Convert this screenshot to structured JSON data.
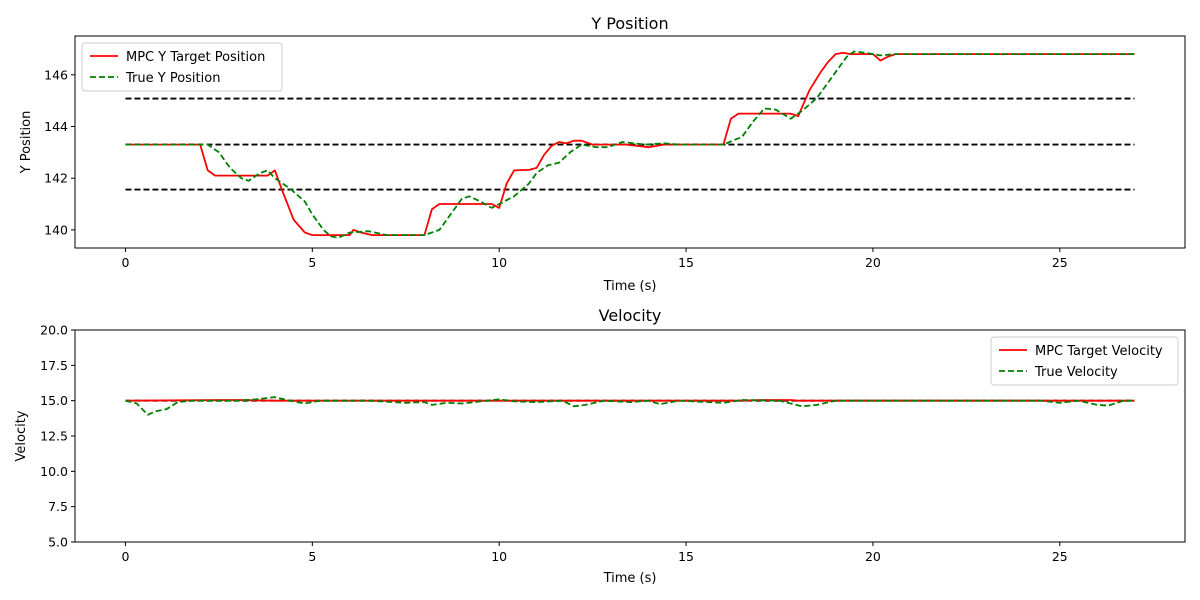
{
  "colors": {
    "target": "#ff0000",
    "true": "#008000",
    "reference": "#000000",
    "axes": "#000000",
    "background": "#ffffff",
    "legend_border": "#cccccc"
  },
  "chart_data": [
    {
      "type": "line",
      "title": "Y Position",
      "xlabel": "Time (s)",
      "ylabel": "Y Position",
      "xlim": [
        -1.35,
        28.35
      ],
      "ylim": [
        139.3,
        147.5
      ],
      "xticks": [
        0,
        5,
        10,
        15,
        20,
        25
      ],
      "yticks": [
        140,
        142,
        144,
        146
      ],
      "grid": false,
      "legend_position": "top-left",
      "reference_lines": [
        {
          "y": 145.08,
          "x": [
            0,
            27
          ],
          "style": "dashed"
        },
        {
          "y": 143.3,
          "x": [
            0,
            27
          ],
          "style": "dashed"
        },
        {
          "y": 141.56,
          "x": [
            0,
            27
          ],
          "style": "dashed"
        }
      ],
      "series": [
        {
          "name": "MPC Y Target Position",
          "style": "solid",
          "color_key": "target",
          "points": [
            [
              0,
              143.3
            ],
            [
              2,
              143.3
            ],
            [
              2.2,
              142.3
            ],
            [
              2.4,
              142.1
            ],
            [
              3.8,
              142.1
            ],
            [
              4.0,
              142.3
            ],
            [
              4.2,
              141.5
            ],
            [
              4.5,
              140.4
            ],
            [
              4.8,
              139.9
            ],
            [
              5.0,
              139.8
            ],
            [
              6.0,
              139.8
            ],
            [
              6.1,
              140.0
            ],
            [
              6.3,
              139.9
            ],
            [
              6.6,
              139.8
            ],
            [
              8.0,
              139.8
            ],
            [
              8.2,
              140.8
            ],
            [
              8.4,
              141.0
            ],
            [
              9.8,
              141.0
            ],
            [
              10.0,
              140.85
            ],
            [
              10.2,
              141.8
            ],
            [
              10.4,
              142.3
            ],
            [
              10.8,
              142.32
            ],
            [
              11.0,
              142.4
            ],
            [
              11.2,
              142.9
            ],
            [
              11.4,
              143.25
            ],
            [
              11.6,
              143.4
            ],
            [
              11.8,
              143.35
            ],
            [
              12.0,
              143.45
            ],
            [
              12.2,
              143.45
            ],
            [
              12.5,
              143.3
            ],
            [
              13.0,
              143.3
            ],
            [
              13.4,
              143.3
            ],
            [
              14.0,
              143.2
            ],
            [
              14.4,
              143.3
            ],
            [
              16.0,
              143.3
            ],
            [
              16.2,
              144.3
            ],
            [
              16.4,
              144.5
            ],
            [
              17.0,
              144.5
            ],
            [
              17.8,
              144.5
            ],
            [
              18.0,
              144.4
            ],
            [
              18.3,
              145.4
            ],
            [
              18.6,
              146.1
            ],
            [
              18.8,
              146.5
            ],
            [
              19.0,
              146.8
            ],
            [
              19.2,
              146.85
            ],
            [
              19.4,
              146.8
            ],
            [
              20.0,
              146.8
            ],
            [
              20.2,
              146.55
            ],
            [
              20.4,
              146.7
            ],
            [
              20.6,
              146.8
            ],
            [
              27,
              146.8
            ]
          ]
        },
        {
          "name": "True Y Position",
          "style": "dashed",
          "color_key": "true",
          "points": [
            [
              0,
              143.3
            ],
            [
              2.2,
              143.3
            ],
            [
              2.5,
              143.0
            ],
            [
              2.8,
              142.4
            ],
            [
              3.1,
              142.0
            ],
            [
              3.3,
              141.9
            ],
            [
              3.6,
              142.2
            ],
            [
              3.8,
              142.3
            ],
            [
              4.0,
              142.0
            ],
            [
              4.4,
              141.6
            ],
            [
              4.8,
              141.1
            ],
            [
              5.0,
              140.6
            ],
            [
              5.3,
              140.0
            ],
            [
              5.5,
              139.75
            ],
            [
              5.7,
              139.7
            ],
            [
              6.0,
              139.9
            ],
            [
              6.5,
              139.95
            ],
            [
              7.0,
              139.8
            ],
            [
              8.0,
              139.8
            ],
            [
              8.4,
              140.0
            ],
            [
              8.7,
              140.6
            ],
            [
              9.0,
              141.2
            ],
            [
              9.2,
              141.3
            ],
            [
              9.5,
              141.1
            ],
            [
              9.8,
              140.85
            ],
            [
              10.0,
              141.0
            ],
            [
              10.4,
              141.3
            ],
            [
              10.8,
              141.8
            ],
            [
              11.0,
              142.2
            ],
            [
              11.3,
              142.5
            ],
            [
              11.6,
              142.6
            ],
            [
              11.9,
              143.0
            ],
            [
              12.2,
              143.3
            ],
            [
              12.6,
              143.2
            ],
            [
              12.9,
              143.2
            ],
            [
              13.3,
              143.4
            ],
            [
              13.6,
              143.35
            ],
            [
              13.9,
              143.3
            ],
            [
              14.4,
              143.35
            ],
            [
              14.8,
              143.3
            ],
            [
              15.3,
              143.3
            ],
            [
              16.0,
              143.3
            ],
            [
              16.5,
              143.6
            ],
            [
              16.8,
              144.2
            ],
            [
              17.1,
              144.7
            ],
            [
              17.4,
              144.65
            ],
            [
              17.8,
              144.3
            ],
            [
              18.1,
              144.6
            ],
            [
              18.5,
              145.1
            ],
            [
              18.8,
              145.7
            ],
            [
              19.1,
              146.3
            ],
            [
              19.3,
              146.7
            ],
            [
              19.5,
              146.9
            ],
            [
              19.8,
              146.85
            ],
            [
              20.2,
              146.75
            ],
            [
              20.6,
              146.8
            ],
            [
              27,
              146.8
            ]
          ]
        }
      ]
    },
    {
      "type": "line",
      "title": "Velocity",
      "xlabel": "Time (s)",
      "ylabel": "Velocity",
      "xlim": [
        -1.35,
        28.35
      ],
      "ylim": [
        5.0,
        20.0
      ],
      "xticks": [
        0,
        5,
        10,
        15,
        20,
        25
      ],
      "yticks": [
        5.0,
        7.5,
        10.0,
        12.5,
        15.0,
        17.5,
        20.0
      ],
      "ytick_labels": [
        "5.0",
        "7.5",
        "10.0",
        "12.5",
        "15.0",
        "17.5",
        "20.0"
      ],
      "grid": false,
      "legend_position": "top-right",
      "reference_lines": [
        {
          "y": 15.0,
          "x": [
            0,
            27
          ],
          "style": "dashed"
        }
      ],
      "series": [
        {
          "name": "MPC Target Velocity",
          "style": "solid",
          "color_key": "target",
          "points": [
            [
              0,
              15.0
            ],
            [
              2.5,
              15.05
            ],
            [
              3.0,
              15.05
            ],
            [
              4.0,
              15.0
            ],
            [
              16.5,
              15.0
            ],
            [
              17.0,
              15.05
            ],
            [
              17.8,
              15.05
            ],
            [
              18.0,
              15.0
            ],
            [
              27,
              15.0
            ]
          ]
        },
        {
          "name": "True Velocity",
          "style": "dashed",
          "color_key": "true",
          "points": [
            [
              0,
              15.0
            ],
            [
              0.3,
              14.8
            ],
            [
              0.6,
              14.0
            ],
            [
              0.8,
              14.25
            ],
            [
              1.1,
              14.4
            ],
            [
              1.4,
              14.9
            ],
            [
              1.8,
              15.0
            ],
            [
              3.0,
              15.0
            ],
            [
              3.5,
              15.1
            ],
            [
              4.0,
              15.25
            ],
            [
              4.4,
              15.0
            ],
            [
              4.8,
              14.8
            ],
            [
              5.2,
              15.0
            ],
            [
              6.5,
              15.0
            ],
            [
              7.5,
              14.85
            ],
            [
              8.0,
              14.9
            ],
            [
              8.2,
              14.7
            ],
            [
              8.6,
              14.85
            ],
            [
              9.0,
              14.8
            ],
            [
              9.5,
              14.95
            ],
            [
              10.0,
              15.1
            ],
            [
              10.4,
              14.95
            ],
            [
              11.0,
              14.9
            ],
            [
              11.7,
              15.0
            ],
            [
              12.0,
              14.6
            ],
            [
              12.3,
              14.7
            ],
            [
              12.8,
              15.0
            ],
            [
              13.5,
              14.9
            ],
            [
              14.0,
              15.0
            ],
            [
              14.3,
              14.75
            ],
            [
              14.8,
              15.0
            ],
            [
              16.0,
              14.85
            ],
            [
              16.5,
              15.05
            ],
            [
              17.5,
              15.0
            ],
            [
              18.1,
              14.6
            ],
            [
              18.5,
              14.7
            ],
            [
              19.0,
              15.0
            ],
            [
              24.5,
              15.0
            ],
            [
              25.0,
              14.85
            ],
            [
              25.5,
              15.0
            ],
            [
              26.0,
              14.7
            ],
            [
              26.3,
              14.65
            ],
            [
              26.7,
              15.0
            ],
            [
              27,
              15.0
            ]
          ]
        }
      ]
    }
  ]
}
